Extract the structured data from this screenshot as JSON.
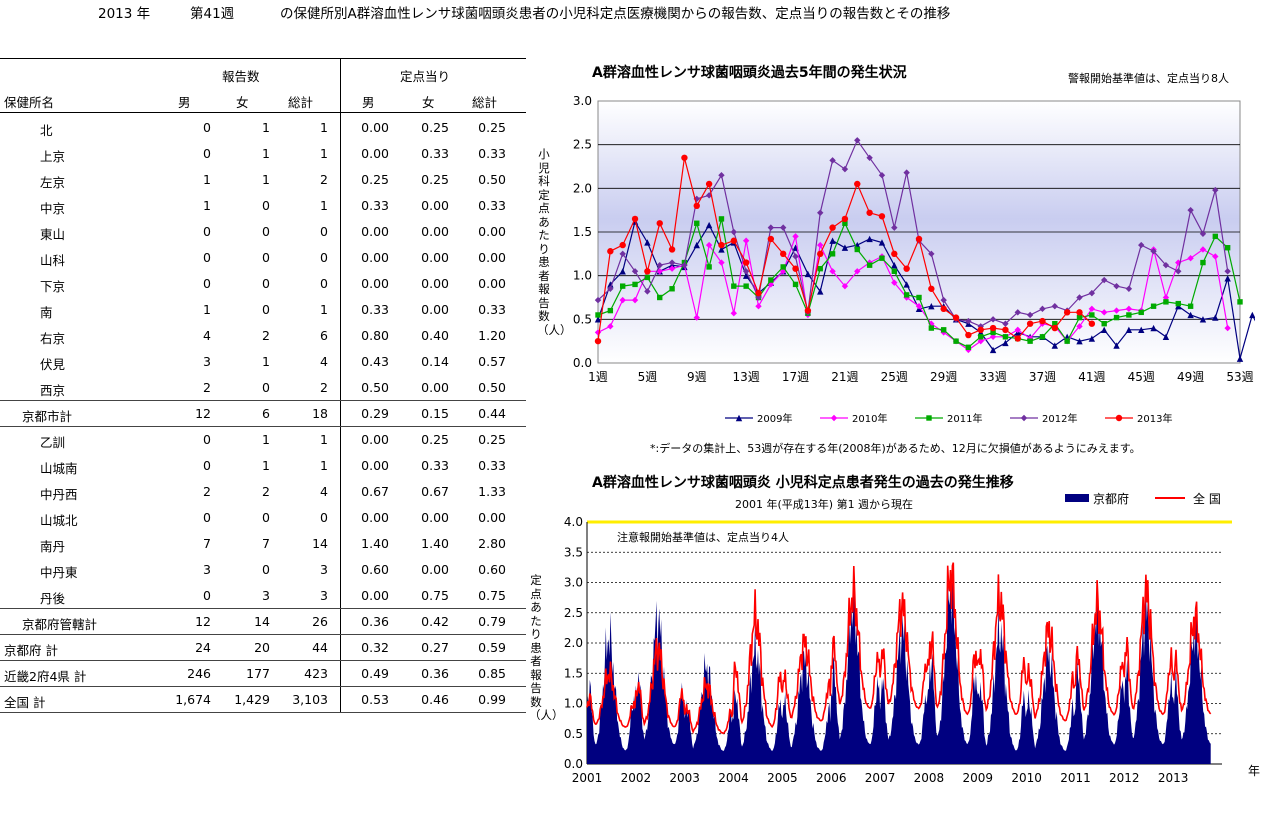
{
  "header": {
    "year": "2013 年",
    "week": "第41週",
    "title": "の保健所別A群溶血性レンサ球菌咽頭炎患者の小児科定点医療機関からの報告数、定点当りの報告数とその推移"
  },
  "table": {
    "group_reports": "報告数",
    "group_per_site": "定点当り",
    "col_name": "保健所名",
    "col_male": "男",
    "col_female": "女",
    "col_total": "総計",
    "col_male2": "男",
    "col_female2": "女",
    "col_total2": "総計",
    "rows": [
      {
        "name": "北",
        "m": "0",
        "f": "1",
        "t": "1",
        "pm": "0.00",
        "pf": "0.25",
        "pt": "0.25",
        "type": "item"
      },
      {
        "name": "上京",
        "m": "0",
        "f": "1",
        "t": "1",
        "pm": "0.00",
        "pf": "0.33",
        "pt": "0.33",
        "type": "item"
      },
      {
        "name": "左京",
        "m": "1",
        "f": "1",
        "t": "2",
        "pm": "0.25",
        "pf": "0.25",
        "pt": "0.50",
        "type": "item"
      },
      {
        "name": "中京",
        "m": "1",
        "f": "0",
        "t": "1",
        "pm": "0.33",
        "pf": "0.00",
        "pt": "0.33",
        "type": "item"
      },
      {
        "name": "東山",
        "m": "0",
        "f": "0",
        "t": "0",
        "pm": "0.00",
        "pf": "0.00",
        "pt": "0.00",
        "type": "item"
      },
      {
        "name": "山科",
        "m": "0",
        "f": "0",
        "t": "0",
        "pm": "0.00",
        "pf": "0.00",
        "pt": "0.00",
        "type": "item"
      },
      {
        "name": "下京",
        "m": "0",
        "f": "0",
        "t": "0",
        "pm": "0.00",
        "pf": "0.00",
        "pt": "0.00",
        "type": "item"
      },
      {
        "name": "南",
        "m": "1",
        "f": "0",
        "t": "1",
        "pm": "0.33",
        "pf": "0.00",
        "pt": "0.33",
        "type": "item"
      },
      {
        "name": "右京",
        "m": "4",
        "f": "2",
        "t": "6",
        "pm": "0.80",
        "pf": "0.40",
        "pt": "1.20",
        "type": "item"
      },
      {
        "name": "伏見",
        "m": "3",
        "f": "1",
        "t": "4",
        "pm": "0.43",
        "pf": "0.14",
        "pt": "0.57",
        "type": "item"
      },
      {
        "name": "西京",
        "m": "2",
        "f": "0",
        "t": "2",
        "pm": "0.50",
        "pf": "0.00",
        "pt": "0.50",
        "type": "item"
      },
      {
        "name": "京都市計",
        "m": "12",
        "f": "6",
        "t": "18",
        "pm": "0.29",
        "pf": "0.15",
        "pt": "0.44",
        "type": "subtotal"
      },
      {
        "name": "乙訓",
        "m": "0",
        "f": "1",
        "t": "1",
        "pm": "0.00",
        "pf": "0.25",
        "pt": "0.25",
        "type": "item"
      },
      {
        "name": "山城南",
        "m": "0",
        "f": "1",
        "t": "1",
        "pm": "0.00",
        "pf": "0.33",
        "pt": "0.33",
        "type": "item"
      },
      {
        "name": "中丹西",
        "m": "2",
        "f": "2",
        "t": "4",
        "pm": "0.67",
        "pf": "0.67",
        "pt": "1.33",
        "type": "item"
      },
      {
        "name": "山城北",
        "m": "0",
        "f": "0",
        "t": "0",
        "pm": "0.00",
        "pf": "0.00",
        "pt": "0.00",
        "type": "item"
      },
      {
        "name": "南丹",
        "m": "7",
        "f": "7",
        "t": "14",
        "pm": "1.40",
        "pf": "1.40",
        "pt": "2.80",
        "type": "item"
      },
      {
        "name": "中丹東",
        "m": "3",
        "f": "0",
        "t": "3",
        "pm": "0.60",
        "pf": "0.00",
        "pt": "0.60",
        "type": "item"
      },
      {
        "name": "丹後",
        "m": "0",
        "f": "3",
        "t": "3",
        "pm": "0.00",
        "pf": "0.75",
        "pt": "0.75",
        "type": "item"
      },
      {
        "name": "京都府管轄計",
        "m": "12",
        "f": "14",
        "t": "26",
        "pm": "0.36",
        "pf": "0.42",
        "pt": "0.79",
        "type": "subtotal"
      },
      {
        "name": "京都府  計",
        "m": "24",
        "f": "20",
        "t": "44",
        "pm": "0.32",
        "pf": "0.27",
        "pt": "0.59",
        "type": "total"
      },
      {
        "name": "近畿2府4県  計",
        "m": "246",
        "f": "177",
        "t": "423",
        "pm": "0.49",
        "pf": "0.36",
        "pt": "0.85",
        "type": "total"
      },
      {
        "name": "全国  計",
        "m": "1,674",
        "f": "1,429",
        "t": "3,103",
        "pm": "0.53",
        "pf": "0.46",
        "pt": "0.99",
        "type": "total"
      }
    ]
  },
  "chart1_text": {
    "title": "A群溶血性レンサ球菌咽頭炎過去5年間の発生状況",
    "threshold_note": "警報開始基準値は、定点当り8人",
    "ylabel": "小児科定点あたり患者報告数（人）",
    "footnote": "*:データの集計上、53週が存在する年(2008年)があるため、12月に欠損値があるようにみえます。"
  },
  "chart2_text": {
    "title": "A群溶血性レンサ球菌咽頭炎  小児科定点患者発生の過去の発生推移",
    "subtitle": "2001 年(平成13年) 第1 週から現在",
    "threshold_note": "注意報開始基準値は、定点当り4人",
    "ylabel": "定点あたり患者報告数（人）",
    "xunit": "年",
    "legend_kyoto": "京都府",
    "legend_national": "全 国"
  },
  "chart_data": [
    {
      "type": "line",
      "title": "A群溶血性レンサ球菌咽頭炎過去5年間の発生状況",
      "ylabel": "小児科定点あたり患者報告数（人）",
      "ylim": [
        0,
        3.0
      ],
      "yticks": [
        "0.0",
        "0.5",
        "1.0",
        "1.5",
        "2.0",
        "2.5",
        "3.0"
      ],
      "xticks": [
        "1週",
        "5週",
        "9週",
        "13週",
        "17週",
        "21週",
        "25週",
        "29週",
        "33週",
        "37週",
        "41週",
        "45週",
        "49週",
        "53週"
      ],
      "xtick_weeks": [
        1,
        5,
        9,
        13,
        17,
        21,
        25,
        29,
        33,
        37,
        41,
        45,
        49,
        53
      ],
      "grid": true,
      "legend_position": "bottom",
      "series": [
        {
          "name": "2009年",
          "color": "#000080",
          "marker": "triangle",
          "values": [
            0.5,
            0.9,
            1.05,
            1.62,
            1.38,
            1.05,
            1.12,
            1.1,
            1.35,
            1.58,
            1.3,
            1.38,
            1.0,
            0.8,
            0.92,
            1.05,
            1.32,
            1.02,
            0.82,
            1.4,
            1.32,
            1.35,
            1.42,
            1.38,
            1.12,
            0.9,
            0.62,
            0.65,
            0.65,
            0.5,
            0.45,
            0.35,
            0.15,
            0.23,
            0.35,
            0.3,
            0.3,
            0.2,
            0.3,
            0.25,
            0.28,
            0.38,
            0.2,
            0.38,
            0.38,
            0.4,
            0.3,
            0.65,
            0.55,
            0.5,
            0.52,
            0.97,
            0.05,
            0.55,
            0.28
          ]
        },
        {
          "name": "2010年",
          "color": "#ff00ff",
          "marker": "diamond",
          "values": [
            0.35,
            0.42,
            0.72,
            0.72,
            1.05,
            1.05,
            1.08,
            1.12,
            0.52,
            1.35,
            1.15,
            0.57,
            1.4,
            0.65,
            0.9,
            1.05,
            1.45,
            0.55,
            1.35,
            1.05,
            0.88,
            1.05,
            1.15,
            1.22,
            0.92,
            0.75,
            0.65,
            0.45,
            0.35,
            0.25,
            0.15,
            0.25,
            0.3,
            0.3,
            0.38,
            0.28,
            0.45,
            0.42,
            0.25,
            0.42,
            0.62,
            0.58,
            0.6,
            0.62,
            0.6,
            1.3,
            0.75,
            1.15,
            1.2,
            1.3,
            1.22,
            0.4
          ]
        },
        {
          "name": "2011年",
          "color": "#00aa00",
          "marker": "square",
          "values": [
            0.55,
            0.6,
            0.88,
            0.9,
            0.98,
            0.75,
            0.85,
            1.15,
            1.6,
            1.1,
            1.65,
            0.88,
            0.88,
            0.75,
            0.95,
            1.1,
            0.9,
            0.57,
            1.08,
            1.25,
            1.6,
            1.3,
            1.12,
            1.2,
            1.05,
            0.78,
            0.75,
            0.4,
            0.38,
            0.25,
            0.18,
            0.3,
            0.35,
            0.3,
            0.28,
            0.25,
            0.3,
            0.45,
            0.25,
            0.52,
            0.55,
            0.45,
            0.52,
            0.55,
            0.58,
            0.65,
            0.7,
            0.68,
            0.65,
            1.15,
            1.45,
            1.32,
            0.7
          ]
        },
        {
          "name": "2012年",
          "color": "#7030a0",
          "marker": "diamond",
          "values": [
            0.72,
            0.85,
            1.25,
            1.05,
            0.82,
            1.12,
            1.15,
            1.12,
            1.88,
            1.92,
            2.15,
            1.5,
            1.05,
            0.75,
            1.55,
            1.55,
            1.22,
            0.58,
            1.72,
            2.32,
            2.22,
            2.55,
            2.35,
            2.15,
            1.55,
            2.18,
            1.4,
            1.25,
            0.72,
            0.5,
            0.48,
            0.42,
            0.5,
            0.45,
            0.58,
            0.55,
            0.62,
            0.65,
            0.6,
            0.75,
            0.8,
            0.95,
            0.88,
            0.85,
            1.35,
            1.28,
            1.12,
            1.05,
            1.75,
            1.48,
            1.98,
            1.05
          ]
        },
        {
          "name": "2013年",
          "color": "#ff0000",
          "marker": "circle",
          "values": [
            0.25,
            1.28,
            1.35,
            1.65,
            1.05,
            1.6,
            1.3,
            2.35,
            1.8,
            2.05,
            1.35,
            1.4,
            1.15,
            0.8,
            1.42,
            1.25,
            1.08,
            0.6,
            1.25,
            1.55,
            1.65,
            2.05,
            1.72,
            1.68,
            1.25,
            1.08,
            1.42,
            0.85,
            0.62,
            0.52,
            0.32,
            0.38,
            0.4,
            0.38,
            0.28,
            0.45,
            0.48,
            0.4,
            0.58,
            0.58,
            0.45
          ]
        }
      ]
    },
    {
      "type": "area",
      "title": "A群溶血性レンサ球菌咽頭炎  小児科定点患者発生の過去の発生推移",
      "subtitle": "2001 年(平成13年) 第1 週から現在",
      "ylabel": "定点あたり患者報告数（人）",
      "ylim": [
        0,
        4.0
      ],
      "yticks": [
        "0.0",
        "0.5",
        "1.0",
        "1.5",
        "2.0",
        "2.5",
        "3.0",
        "3.5",
        "4.0"
      ],
      "x": [
        "2001",
        "2002",
        "2003",
        "2004",
        "2005",
        "2006",
        "2007",
        "2008",
        "2009",
        "2010",
        "2011",
        "2012",
        "2013"
      ],
      "threshold": 4.0,
      "legend_position": "top-right",
      "series": [
        {
          "name": "京都府",
          "color": "#000080",
          "kind": "area",
          "peaks": [
            2.1,
            2.4,
            1.6,
            1.9,
            1.7,
            2.6,
            2.2,
            2.9,
            2.2,
            1.8,
            2.5,
            2.5,
            2.2
          ],
          "troughs": [
            0.2,
            0.3,
            0.2,
            0.2,
            0.2,
            0.3,
            0.3,
            0.3,
            0.2,
            0.2,
            0.3,
            0.3,
            0.3
          ]
        },
        {
          "name": "全 国",
          "color": "#ff0000",
          "kind": "line",
          "peaks": [
            1.5,
            1.9,
            1.3,
            2.4,
            2.0,
            2.8,
            2.6,
            3.1,
            2.7,
            2.2,
            2.6,
            2.8,
            2.4
          ],
          "troughs": [
            0.6,
            0.6,
            0.5,
            0.6,
            0.7,
            0.9,
            0.9,
            0.8,
            0.8,
            0.7,
            0.8,
            0.8,
            0.8
          ]
        }
      ]
    }
  ]
}
